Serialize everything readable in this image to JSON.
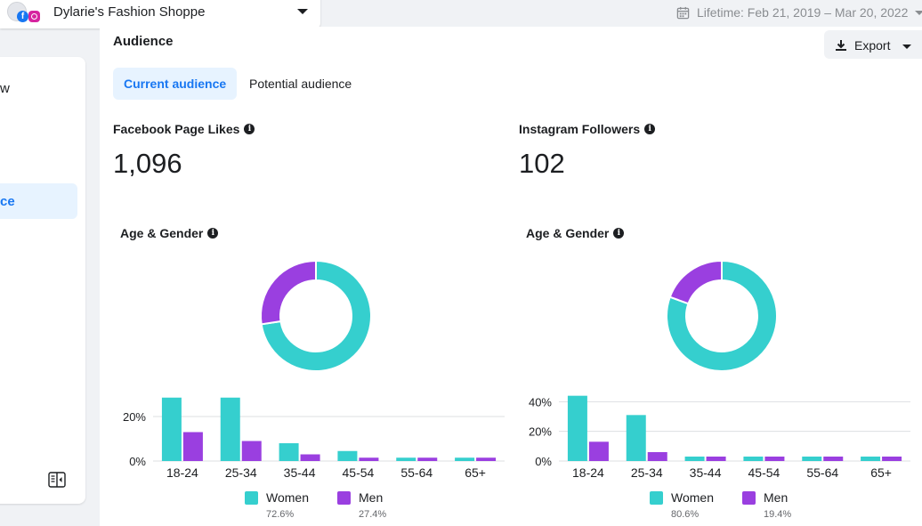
{
  "header": {
    "page_name": "Dylarie's Fashion Shoppe",
    "date_range": "Lifetime: Feb 21, 2019 – Mar 20, 2022"
  },
  "sidebar": {
    "item_partial": "w",
    "active_partial": "ce"
  },
  "main": {
    "section_title": "Audience",
    "export_label": "Export",
    "tabs": [
      {
        "label": "Current audience",
        "active": true
      },
      {
        "label": "Potential audience",
        "active": false
      }
    ]
  },
  "facebook": {
    "metric_label": "Facebook Page Likes",
    "metric_value": "1,096",
    "chart_label": "Age & Gender"
  },
  "instagram": {
    "metric_label": "Instagram Followers",
    "metric_value": "102",
    "chart_label": "Age & Gender"
  },
  "colors": {
    "women": "#35cfce",
    "men": "#9a3fe0",
    "accent": "#1877f2"
  },
  "chart_data": [
    {
      "id": "facebook",
      "type": "bar",
      "title": "Age & Gender",
      "categories": [
        "18-24",
        "25-34",
        "35-44",
        "45-54",
        "55-64",
        "65+"
      ],
      "series": [
        {
          "name": "Women",
          "values": [
            28.5,
            28.5,
            8,
            4.5,
            1.5,
            1.5
          ]
        },
        {
          "name": "Men",
          "values": [
            13,
            9,
            3,
            1.5,
            1.5,
            1.5
          ]
        }
      ],
      "yticks": [
        0,
        20
      ],
      "ytick_labels": [
        "0%",
        "20%"
      ],
      "ylim": [
        0,
        30
      ],
      "donut": [
        {
          "name": "Women",
          "value": 72.6,
          "label": "72.6%"
        },
        {
          "name": "Men",
          "value": 27.4,
          "label": "27.4%"
        }
      ]
    },
    {
      "id": "instagram",
      "type": "bar",
      "title": "Age & Gender",
      "categories": [
        "18-24",
        "25-34",
        "35-44",
        "45-54",
        "55-64",
        "65+"
      ],
      "series": [
        {
          "name": "Women",
          "values": [
            44,
            31,
            3,
            3,
            3,
            3
          ]
        },
        {
          "name": "Men",
          "values": [
            13,
            6,
            3,
            3,
            3,
            3
          ]
        }
      ],
      "yticks": [
        0,
        20,
        40
      ],
      "ytick_labels": [
        "0%",
        "20%",
        "40%"
      ],
      "ylim": [
        0,
        45
      ],
      "donut": [
        {
          "name": "Women",
          "value": 80.6,
          "label": "80.6%"
        },
        {
          "name": "Men",
          "value": 19.4,
          "label": "19.4%"
        }
      ]
    }
  ]
}
